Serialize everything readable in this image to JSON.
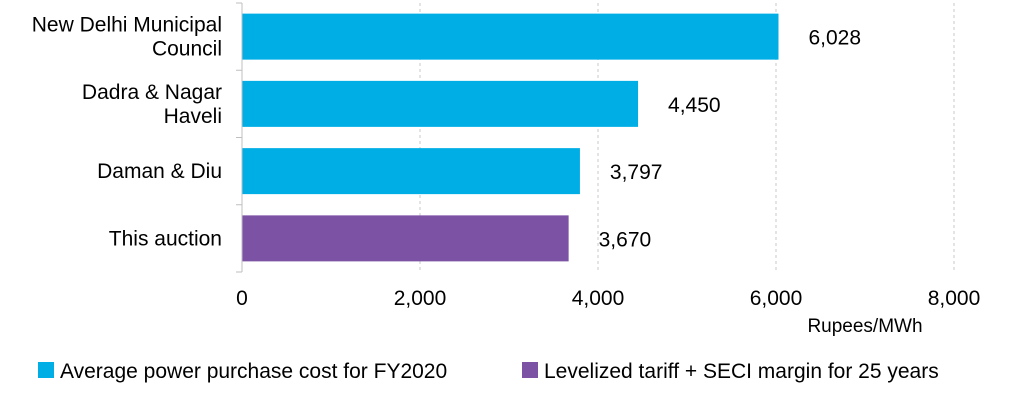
{
  "chart_data": {
    "type": "bar",
    "orientation": "horizontal",
    "categories": [
      [
        "New Delhi Municipal",
        "Council"
      ],
      [
        "Dadra & Nagar",
        "Haveli"
      ],
      [
        "Daman & Diu"
      ],
      [
        "This auction"
      ]
    ],
    "values": [
      6028,
      4450,
      3797,
      3670
    ],
    "value_labels": [
      "6,028",
      "4,450",
      "3,797",
      "3,670"
    ],
    "bar_series": [
      0,
      0,
      0,
      1
    ],
    "series": [
      {
        "name": "Average power purchase cost for FY2020",
        "color": "#00AEE6"
      },
      {
        "name": "Levelized tariff + SECI margin for 25 years",
        "color": "#7B52A4"
      }
    ],
    "xlabel": "Rupees/MWh",
    "ylabel": "",
    "xlim": [
      0,
      8000
    ],
    "xticks": [
      0,
      2000,
      4000,
      6000,
      8000
    ],
    "xtick_labels": [
      "0",
      "2,000",
      "4,000",
      "6,000",
      "8,000"
    ],
    "grid": "vertical dashed",
    "legend_position": "bottom"
  }
}
